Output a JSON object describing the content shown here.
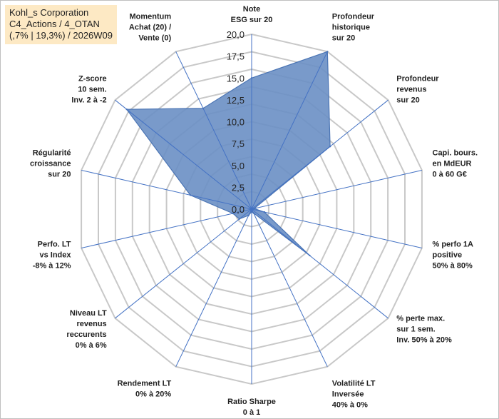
{
  "title_box": {
    "line1": "Kohl_s Corporation",
    "line2": "C4_Actions / 4_OTAN",
    "line3": "(,7% | 19,3%) / 2026W09"
  },
  "colors": {
    "fill": "#6a8fc4",
    "stroke": "#4a74b4",
    "grid": "#c8c8c8",
    "spoke": "#4472c4",
    "title_bg": "#fde9c4"
  },
  "chart_data": {
    "type": "radar",
    "rmax": 20,
    "ticks": [
      0,
      2.5,
      5,
      7.5,
      10,
      12.5,
      15,
      17.5,
      20
    ],
    "tick_labels": [
      "0,0",
      "2,5",
      "5,0",
      "7,5",
      "10,0",
      "12,5",
      "15,0",
      "17,5",
      "20,0"
    ],
    "grid_rings": 10,
    "axes": [
      [
        "Note",
        "ESG sur 20"
      ],
      [
        "Profondeur",
        "historique",
        "sur 20"
      ],
      [
        "Profondeur",
        "revenus",
        "sur 20"
      ],
      [
        "Capi. bours.",
        "en MdEUR",
        "0 à 60 G€"
      ],
      [
        "% perfo 1A",
        "positive",
        "50% à 80%"
      ],
      [
        "% perte max.",
        "sur 1 sem.",
        "Inv. 50% à 20%"
      ],
      [
        "Volatilité LT",
        "Inversée",
        "40% à 0%"
      ],
      [
        "Ratio Sharpe",
        "0 à 1"
      ],
      [
        "Rendement LT",
        "0% à 20%"
      ],
      [
        "Niveau LT",
        "revenus",
        "reccurents",
        "0% à 6%"
      ],
      [
        "Perfo. LT",
        "vs Index",
        "-8% à 12%"
      ],
      [
        "Régularité",
        "croissance",
        "sur 20"
      ],
      [
        "Z-score",
        "10 sem.",
        "Inv. 2 à -2"
      ],
      [
        "Momentum",
        "Achat (20) /",
        "Vente (0)"
      ]
    ],
    "values": [
      15,
      20,
      11.5,
      0.3,
      1.5,
      8.5,
      0.5,
      0.3,
      0.8,
      1.8,
      2.2,
      7.2,
      18.3,
      12.8
    ]
  }
}
